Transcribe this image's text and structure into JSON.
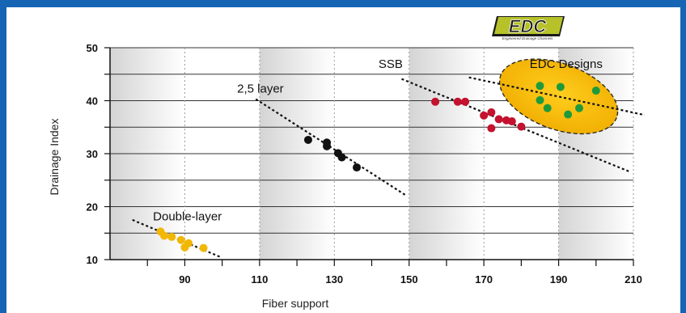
{
  "logo": {
    "text": "EDC",
    "tagline": "Engineered Drainage Channels"
  },
  "chart_data": {
    "type": "scatter",
    "title": "",
    "xlabel": "Fiber support",
    "ylabel": "Drainage Index",
    "xlim": [
      70,
      210
    ],
    "ylim": [
      10,
      50
    ],
    "xticks": [
      90,
      110,
      130,
      150,
      170,
      190,
      210
    ],
    "yticks": [
      10,
      20,
      30,
      40,
      50
    ],
    "grid": true,
    "legend": "none",
    "series": [
      {
        "name": "Double-layer",
        "color": "#f2b705",
        "points": [
          [
            83.5,
            15.3
          ],
          [
            84.5,
            14.5
          ],
          [
            86.5,
            14.3
          ],
          [
            89,
            13.7
          ],
          [
            90,
            12.3
          ],
          [
            91,
            13.1
          ],
          [
            95,
            12.2
          ]
        ],
        "trend": [
          [
            76,
            17.5
          ],
          [
            99.5,
            10.5
          ]
        ]
      },
      {
        "name": "2,5 layer",
        "color": "#111111",
        "points": [
          [
            123,
            32.6
          ],
          [
            128,
            32.1
          ],
          [
            128,
            31.4
          ],
          [
            131,
            30.1
          ],
          [
            132,
            29.3
          ],
          [
            136,
            27.4
          ]
        ],
        "trend": [
          [
            109,
            40.3
          ],
          [
            149,
            22.2
          ]
        ]
      },
      {
        "name": "SSB",
        "color": "#c4122f",
        "points": [
          [
            157,
            39.8
          ],
          [
            163,
            39.8
          ],
          [
            165,
            39.8
          ],
          [
            170,
            37.2
          ],
          [
            172,
            37.8
          ],
          [
            172,
            34.8
          ],
          [
            174,
            36.5
          ],
          [
            176,
            36.3
          ],
          [
            177.5,
            36.1
          ],
          [
            180,
            35.1
          ]
        ],
        "trend": [
          [
            148,
            44.1
          ],
          [
            209,
            26.6
          ]
        ]
      },
      {
        "name": "EDC Designs",
        "color": "#1f9a3b",
        "points": [
          [
            185,
            42.8
          ],
          [
            185,
            40.1
          ],
          [
            187,
            38.6
          ],
          [
            190.5,
            42.6
          ],
          [
            192.5,
            37.4
          ],
          [
            195.5,
            38.6
          ],
          [
            200,
            41.9
          ]
        ],
        "trend": [
          [
            166,
            44.4
          ],
          [
            213,
            37.3
          ]
        ],
        "ellipse": {
          "cx": 190,
          "cy": 40.8,
          "rx": 16.5,
          "ry": 6.2,
          "color": "#f5b800"
        }
      }
    ],
    "annotations": [
      {
        "text": "Double-layer",
        "x": 81.5,
        "y": 17.4,
        "anchor": "start"
      },
      {
        "text": "2,5 layer",
        "x": 104,
        "y": 41.5,
        "anchor": "start"
      },
      {
        "text": "SSB",
        "x": 148.3,
        "y": 46.2,
        "anchor": "end"
      },
      {
        "text": "EDC Designs",
        "x": 192,
        "y": 46.2,
        "anchor": "middle"
      }
    ]
  }
}
